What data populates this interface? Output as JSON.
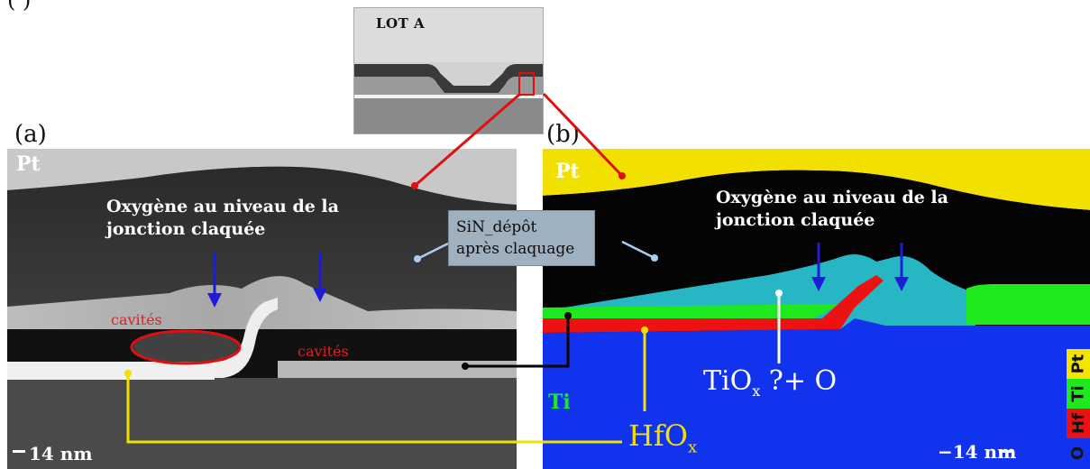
{
  "caption_fragment": "(                                          )",
  "inset": {
    "title": "LOT A"
  },
  "panel_a": {
    "label": "(a)",
    "pt": "Pt",
    "oxygen_line1": "Oxygène au niveau de la",
    "oxygen_line2": "jonction claquée",
    "cavities_left": "cavités",
    "cavities_right": "cavités",
    "scale": "14 nm"
  },
  "panel_b": {
    "label": "(b)",
    "pt": "Pt",
    "oxygen_line1": "Oxygène au niveau de la",
    "oxygen_line2": "jonction claquée",
    "tiox_main": "TiO",
    "tiox_sub": "x",
    "tiox_rest": " ?+ O",
    "ti": "Ti",
    "scale": "−14 nm"
  },
  "sin_box": {
    "line1": "SiN_dépôt",
    "line2": "après claquage"
  },
  "hfox": {
    "main": "HfO",
    "sub": "x"
  },
  "legend": [
    {
      "label": "Pt",
      "color": "#f4e400"
    },
    {
      "label": "Ti",
      "color": "#1ee81e"
    },
    {
      "label": "Hf",
      "color": "#ee1111"
    },
    {
      "label": "O",
      "color": "#1133ee"
    }
  ],
  "colors": {
    "pointer_red": "#dd1111",
    "pointer_yellow": "#f2e000",
    "pointer_black": "#000000",
    "pointer_lightblue": "#aaccee",
    "arrow_blue": "#1d1dd8",
    "cavity_text": "#e02020"
  }
}
